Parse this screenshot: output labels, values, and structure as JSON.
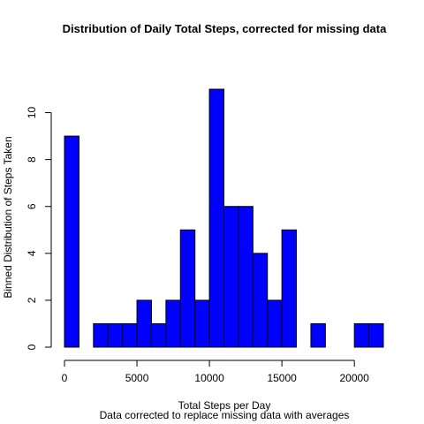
{
  "chart_data": {
    "type": "bar",
    "title": "Distribution of Daily Total Steps, corrected for missing data",
    "xlabel": "Total Steps per Day",
    "subtitle": "Data corrected to replace missing data with averages",
    "ylabel": "Binned Distribution of Steps Taken",
    "bin_width": 1000,
    "bins_start": [
      0,
      1000,
      2000,
      3000,
      4000,
      5000,
      6000,
      7000,
      8000,
      9000,
      10000,
      11000,
      12000,
      13000,
      14000,
      15000,
      16000,
      17000,
      18000,
      19000,
      20000,
      21000
    ],
    "values": [
      9,
      0,
      1,
      1,
      1,
      2,
      1,
      2,
      5,
      2,
      11,
      6,
      6,
      4,
      2,
      5,
      0,
      1,
      0,
      0,
      1,
      1
    ],
    "xlim": [
      0,
      22000
    ],
    "ylim": [
      0,
      11
    ],
    "x_ticks": [
      0,
      5000,
      10000,
      15000,
      20000
    ],
    "y_ticks": [
      0,
      2,
      4,
      6,
      8,
      10
    ],
    "bar_color": "#0000ff",
    "grid": false,
    "legend": "none"
  }
}
